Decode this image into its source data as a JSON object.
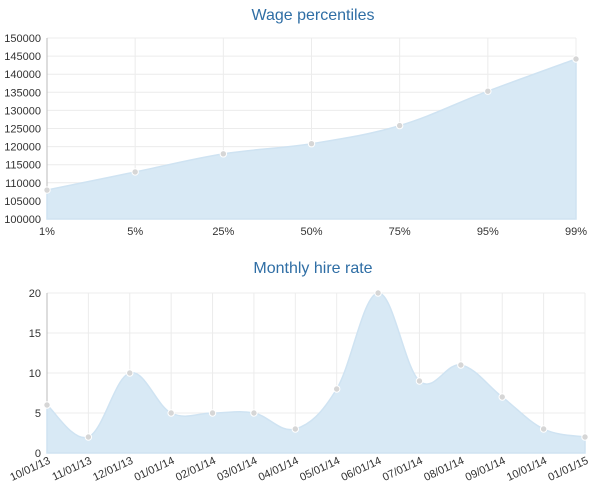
{
  "chart_data": [
    {
      "type": "area",
      "title": "Wage percentiles",
      "xlabel": "",
      "ylabel": "",
      "categories": [
        "1%",
        "5%",
        "25%",
        "50%",
        "75%",
        "95%",
        "99%"
      ],
      "values": [
        108000,
        113000,
        118000,
        120800,
        125800,
        135300,
        144200
      ],
      "ylim": [
        100000,
        150000
      ],
      "yticks": [
        "100000",
        "105000",
        "110000",
        "115000",
        "120000",
        "125000",
        "130000",
        "135000",
        "140000",
        "145000",
        "150000"
      ],
      "grid": true,
      "colors": {
        "fill": "#d8e9f5",
        "point": "#d6d6d6",
        "title": "#2f6ea5"
      }
    },
    {
      "type": "area",
      "title": "Monthly hire rate",
      "xlabel": "",
      "ylabel": "",
      "categories": [
        "10/01/13",
        "11/01/13",
        "12/01/13",
        "01/01/14",
        "02/01/14",
        "03/01/14",
        "04/01/14",
        "05/01/14",
        "06/01/14",
        "07/01/14",
        "08/01/14",
        "09/01/14",
        "10/01/14",
        "01/01/15"
      ],
      "values": [
        6,
        2,
        10,
        5,
        5,
        5,
        3,
        8,
        20,
        9,
        11,
        7,
        3,
        2
      ],
      "ylim": [
        0,
        20
      ],
      "yticks": [
        "0",
        "5",
        "10",
        "15",
        "20"
      ],
      "grid": true,
      "colors": {
        "fill": "#d8e9f5",
        "point": "#d6d6d6",
        "title": "#2f6ea5"
      }
    }
  ]
}
